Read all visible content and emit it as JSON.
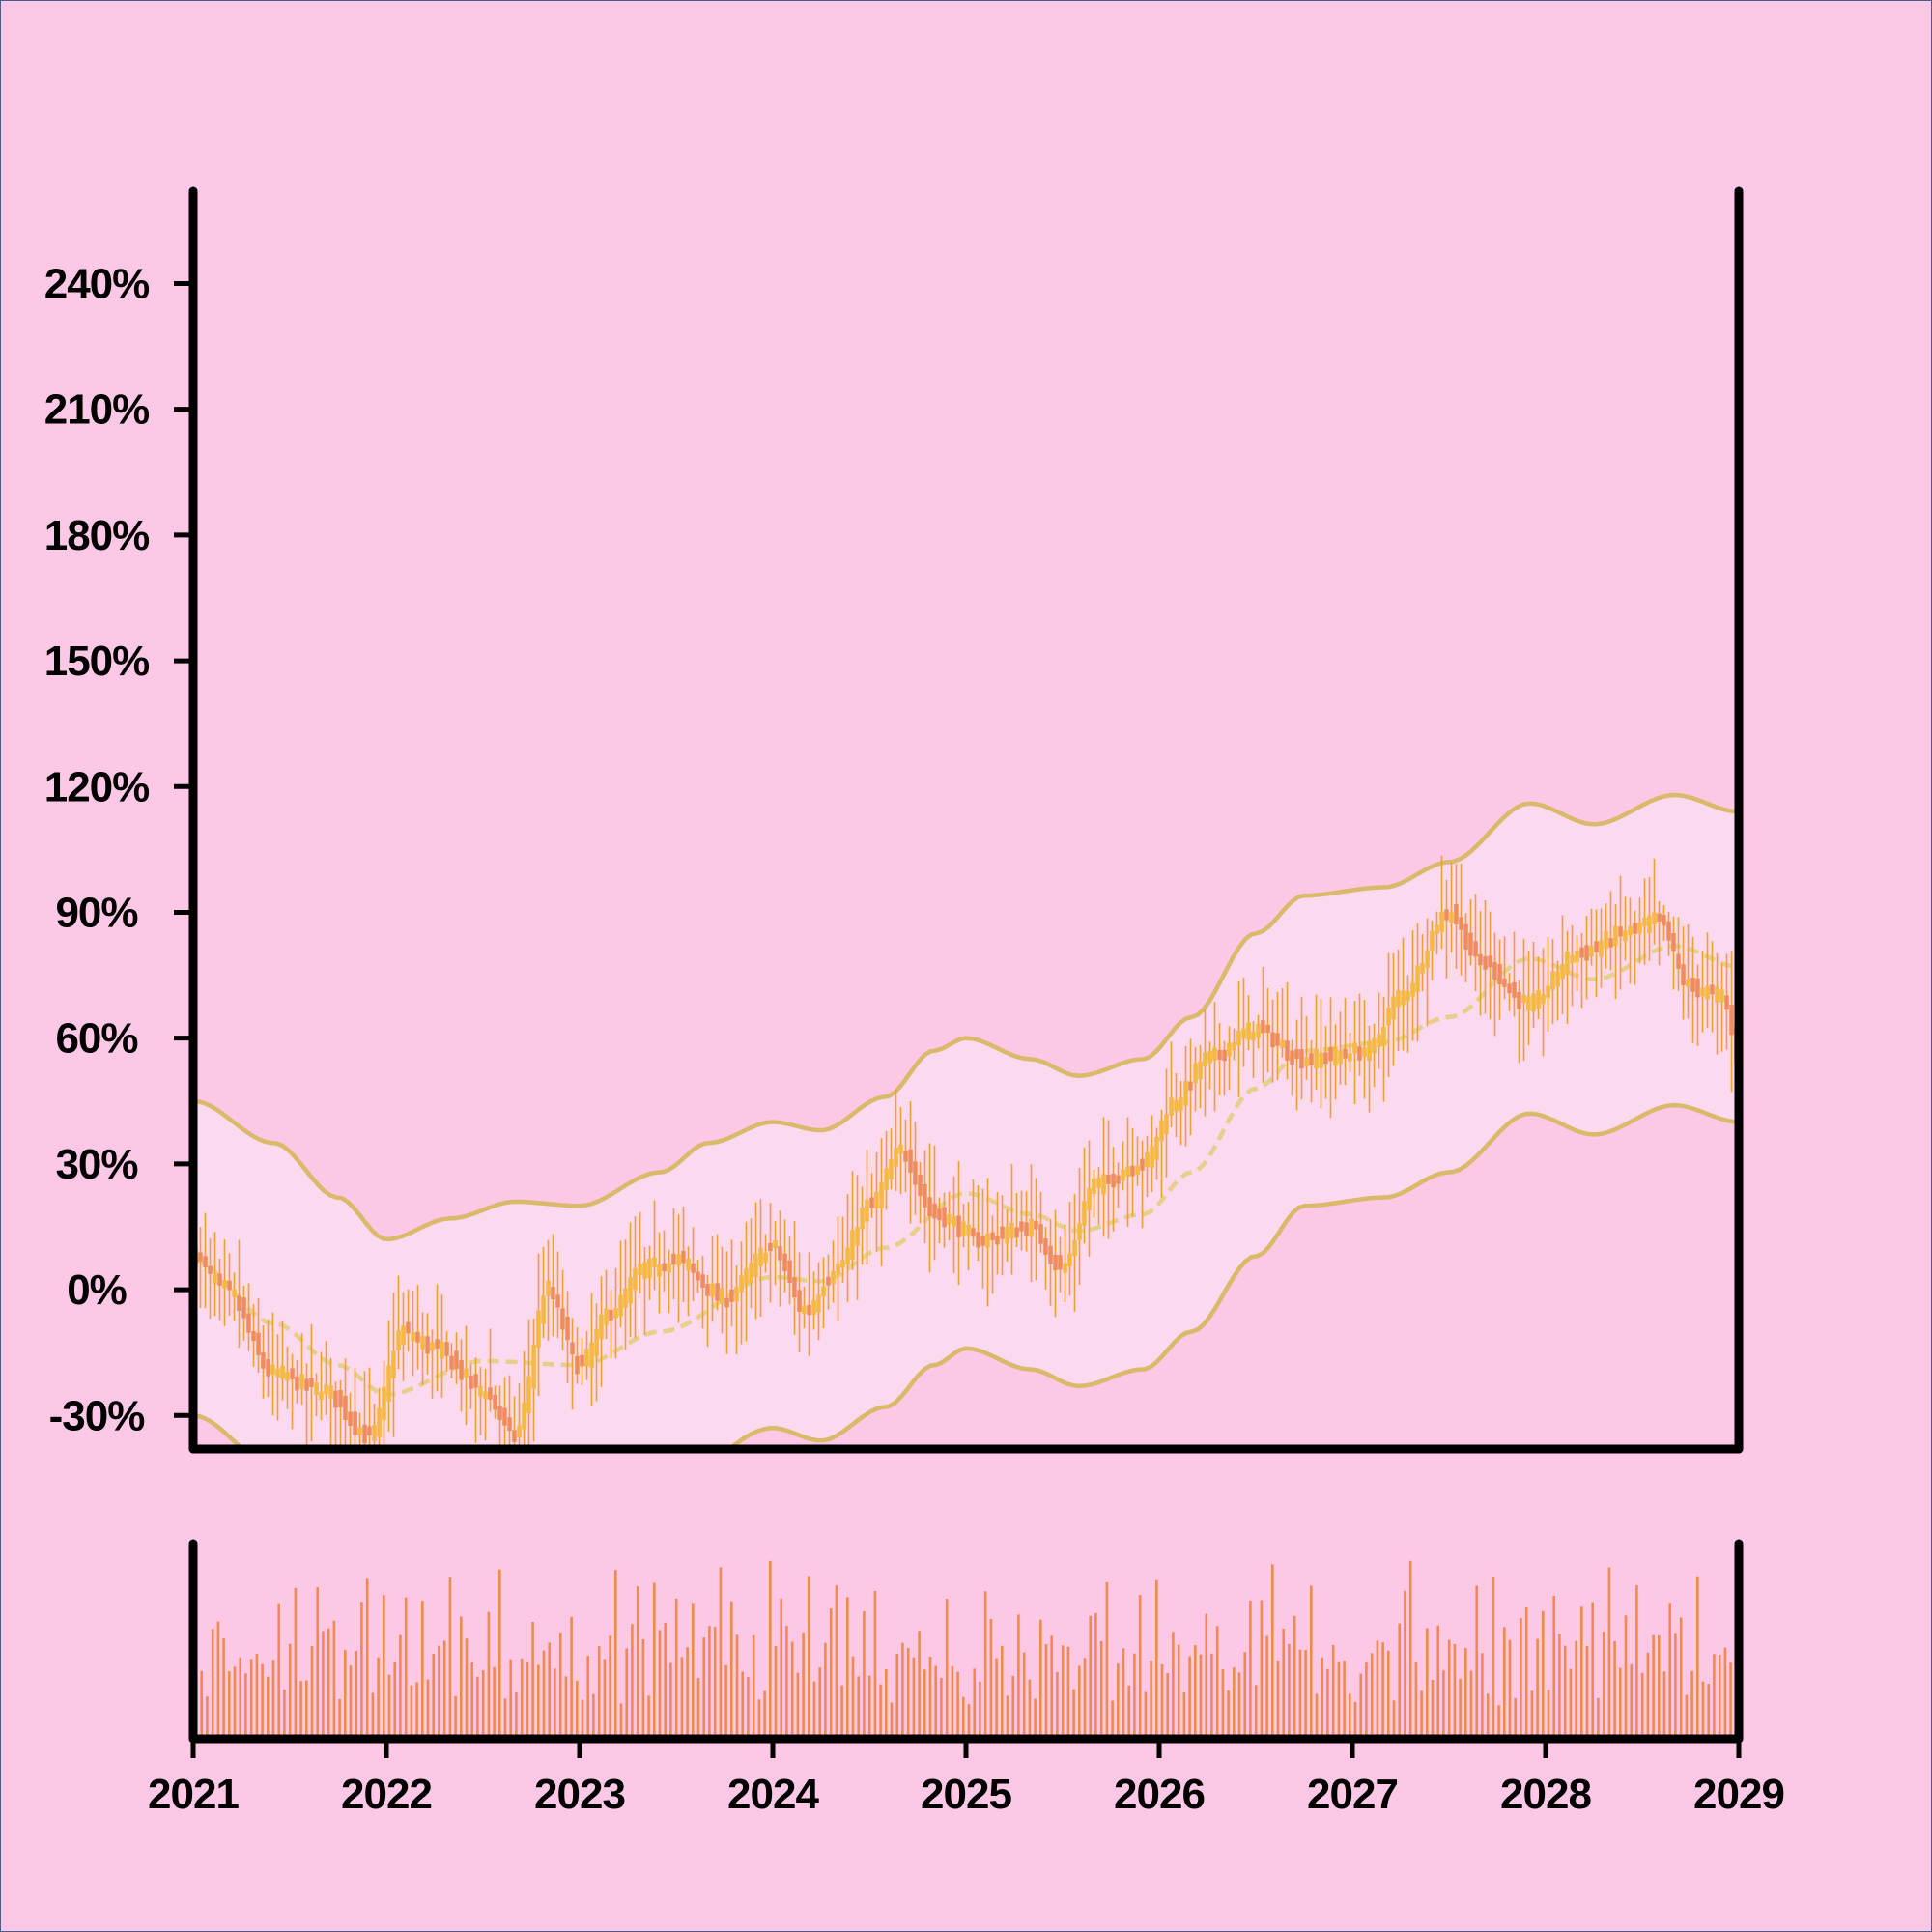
{
  "chart_data": {
    "type": "candlestick",
    "title": "",
    "xlabel": "",
    "ylabel": "",
    "x_ticks": [
      "2021",
      "2022",
      "2023",
      "2024",
      "2025",
      "2026",
      "2027",
      "2028",
      "2029"
    ],
    "y_ticks": [
      "-30%",
      "0%",
      "30%",
      "60%",
      "90%",
      "120%",
      "150%",
      "180%",
      "210%",
      "240%"
    ],
    "xlim": [
      "2021",
      "2029"
    ],
    "ylim": [
      -38,
      262
    ],
    "price_path": [
      {
        "date": "2021-01",
        "value": 8
      },
      {
        "date": "2021-03",
        "value": 0
      },
      {
        "date": "2021-06",
        "value": -20
      },
      {
        "date": "2021-09",
        "value": -24
      },
      {
        "date": "2021-12",
        "value": -35
      },
      {
        "date": "2022-02",
        "value": -10
      },
      {
        "date": "2022-04",
        "value": -14
      },
      {
        "date": "2022-07",
        "value": -24
      },
      {
        "date": "2022-09",
        "value": -35
      },
      {
        "date": "2022-11",
        "value": 0
      },
      {
        "date": "2023-01",
        "value": -18
      },
      {
        "date": "2023-03",
        "value": -5
      },
      {
        "date": "2023-05",
        "value": 5
      },
      {
        "date": "2023-07",
        "value": 7
      },
      {
        "date": "2023-10",
        "value": -2
      },
      {
        "date": "2024-01",
        "value": 10
      },
      {
        "date": "2024-03",
        "value": -5
      },
      {
        "date": "2024-05",
        "value": 5
      },
      {
        "date": "2024-07",
        "value": 20
      },
      {
        "date": "2024-09",
        "value": 33
      },
      {
        "date": "2024-11",
        "value": 18
      },
      {
        "date": "2025-02",
        "value": 12
      },
      {
        "date": "2025-05",
        "value": 15
      },
      {
        "date": "2025-07",
        "value": 5
      },
      {
        "date": "2025-09",
        "value": 25
      },
      {
        "date": "2025-12",
        "value": 30
      },
      {
        "date": "2026-02",
        "value": 45
      },
      {
        "date": "2026-04",
        "value": 55
      },
      {
        "date": "2026-07",
        "value": 62
      },
      {
        "date": "2026-10",
        "value": 55
      },
      {
        "date": "2027-02",
        "value": 57
      },
      {
        "date": "2027-04",
        "value": 70
      },
      {
        "date": "2027-07",
        "value": 90
      },
      {
        "date": "2027-09",
        "value": 78
      },
      {
        "date": "2027-12",
        "value": 68
      },
      {
        "date": "2028-03",
        "value": 80
      },
      {
        "date": "2028-06",
        "value": 85
      },
      {
        "date": "2028-08",
        "value": 88
      },
      {
        "date": "2028-10",
        "value": 72
      },
      {
        "date": "2028-12",
        "value": 70
      },
      {
        "date": "2029-01",
        "value": 55
      }
    ],
    "band_upper": [
      {
        "date": "2021-01",
        "value": 45
      },
      {
        "date": "2021-06",
        "value": 35
      },
      {
        "date": "2021-10",
        "value": 22
      },
      {
        "date": "2022-01",
        "value": 12
      },
      {
        "date": "2022-05",
        "value": 17
      },
      {
        "date": "2022-09",
        "value": 21
      },
      {
        "date": "2023-01",
        "value": 20
      },
      {
        "date": "2023-06",
        "value": 28
      },
      {
        "date": "2023-09",
        "value": 35
      },
      {
        "date": "2024-01",
        "value": 40
      },
      {
        "date": "2024-04",
        "value": 38
      },
      {
        "date": "2024-08",
        "value": 46
      },
      {
        "date": "2024-11",
        "value": 57
      },
      {
        "date": "2025-01",
        "value": 60
      },
      {
        "date": "2025-05",
        "value": 55
      },
      {
        "date": "2025-08",
        "value": 51
      },
      {
        "date": "2025-12",
        "value": 55
      },
      {
        "date": "2026-03",
        "value": 65
      },
      {
        "date": "2026-07",
        "value": 85
      },
      {
        "date": "2026-10",
        "value": 94
      },
      {
        "date": "2027-03",
        "value": 96
      },
      {
        "date": "2027-07",
        "value": 102
      },
      {
        "date": "2027-12",
        "value": 116
      },
      {
        "date": "2028-04",
        "value": 111
      },
      {
        "date": "2028-09",
        "value": 118
      },
      {
        "date": "2029-01",
        "value": 114
      }
    ],
    "band_middle": [
      {
        "date": "2021-01",
        "value": 7
      },
      {
        "date": "2021-06",
        "value": -8
      },
      {
        "date": "2021-10",
        "value": -18
      },
      {
        "date": "2022-01",
        "value": -25
      },
      {
        "date": "2022-07",
        "value": -17
      },
      {
        "date": "2023-01",
        "value": -18
      },
      {
        "date": "2023-06",
        "value": -10
      },
      {
        "date": "2024-01",
        "value": 3
      },
      {
        "date": "2024-04",
        "value": 2
      },
      {
        "date": "2024-08",
        "value": 10
      },
      {
        "date": "2025-01",
        "value": 23
      },
      {
        "date": "2025-05",
        "value": 18
      },
      {
        "date": "2025-08",
        "value": 14
      },
      {
        "date": "2025-12",
        "value": 18
      },
      {
        "date": "2026-03",
        "value": 28
      },
      {
        "date": "2026-07",
        "value": 48
      },
      {
        "date": "2026-10",
        "value": 57
      },
      {
        "date": "2027-03",
        "value": 59
      },
      {
        "date": "2027-07",
        "value": 65
      },
      {
        "date": "2027-12",
        "value": 79
      },
      {
        "date": "2028-04",
        "value": 74
      },
      {
        "date": "2028-09",
        "value": 82
      },
      {
        "date": "2029-01",
        "value": 77
      }
    ],
    "band_lower": [
      {
        "date": "2021-01",
        "value": -30
      },
      {
        "date": "2021-06",
        "value": -42
      },
      {
        "date": "2022-01",
        "value": -60
      },
      {
        "date": "2022-07",
        "value": -55
      },
      {
        "date": "2023-01",
        "value": -56
      },
      {
        "date": "2023-06",
        "value": -48
      },
      {
        "date": "2024-01",
        "value": -33
      },
      {
        "date": "2024-04",
        "value": -36
      },
      {
        "date": "2024-08",
        "value": -28
      },
      {
        "date": "2024-11",
        "value": -18
      },
      {
        "date": "2025-01",
        "value": -14
      },
      {
        "date": "2025-05",
        "value": -19
      },
      {
        "date": "2025-08",
        "value": -23
      },
      {
        "date": "2025-12",
        "value": -19
      },
      {
        "date": "2026-03",
        "value": -10
      },
      {
        "date": "2026-07",
        "value": 8
      },
      {
        "date": "2026-10",
        "value": 20
      },
      {
        "date": "2027-03",
        "value": 22
      },
      {
        "date": "2027-07",
        "value": 28
      },
      {
        "date": "2027-12",
        "value": 42
      },
      {
        "date": "2028-04",
        "value": 37
      },
      {
        "date": "2028-09",
        "value": 44
      },
      {
        "date": "2029-01",
        "value": 40
      }
    ],
    "volume_levels": [
      0.25,
      0.5,
      0.35,
      0.7,
      0.55,
      0.4,
      0.65,
      0.3,
      0.45,
      0.6,
      0.75,
      0.5,
      0.38,
      0.62,
      0.48,
      0.8,
      0.33,
      0.55,
      0.7,
      0.42,
      0.58,
      0.36,
      0.66,
      0.5,
      0.44,
      0.72,
      0.3,
      0.56,
      0.68,
      0.4,
      0.52,
      0.61,
      0.35,
      0.47,
      0.74,
      0.39,
      0.58,
      0.45,
      0.63,
      0.32,
      0.54,
      0.7,
      0.43,
      0.6,
      0.37,
      0.5,
      0.66,
      0.41,
      0.55,
      0.48,
      0.35,
      0.62,
      0.44,
      0.57,
      0.4,
      0.68,
      0.33,
      0.52,
      0.45,
      0.6,
      0.38,
      0.5,
      0.64,
      0.36,
      0.55,
      0.47,
      0.6,
      0.42,
      0.53,
      0.4
    ],
    "colors": {
      "background": "#fdc8e6",
      "axis": "#000000",
      "candle_up": "#f5b840",
      "candle_down": "#ee8c5e",
      "wick": "#f0a030",
      "band_line": "#d9b96a",
      "band_fill": "#fbd9ee",
      "middle_line": "#e6cf8a",
      "volume": "#ee8a50"
    }
  }
}
